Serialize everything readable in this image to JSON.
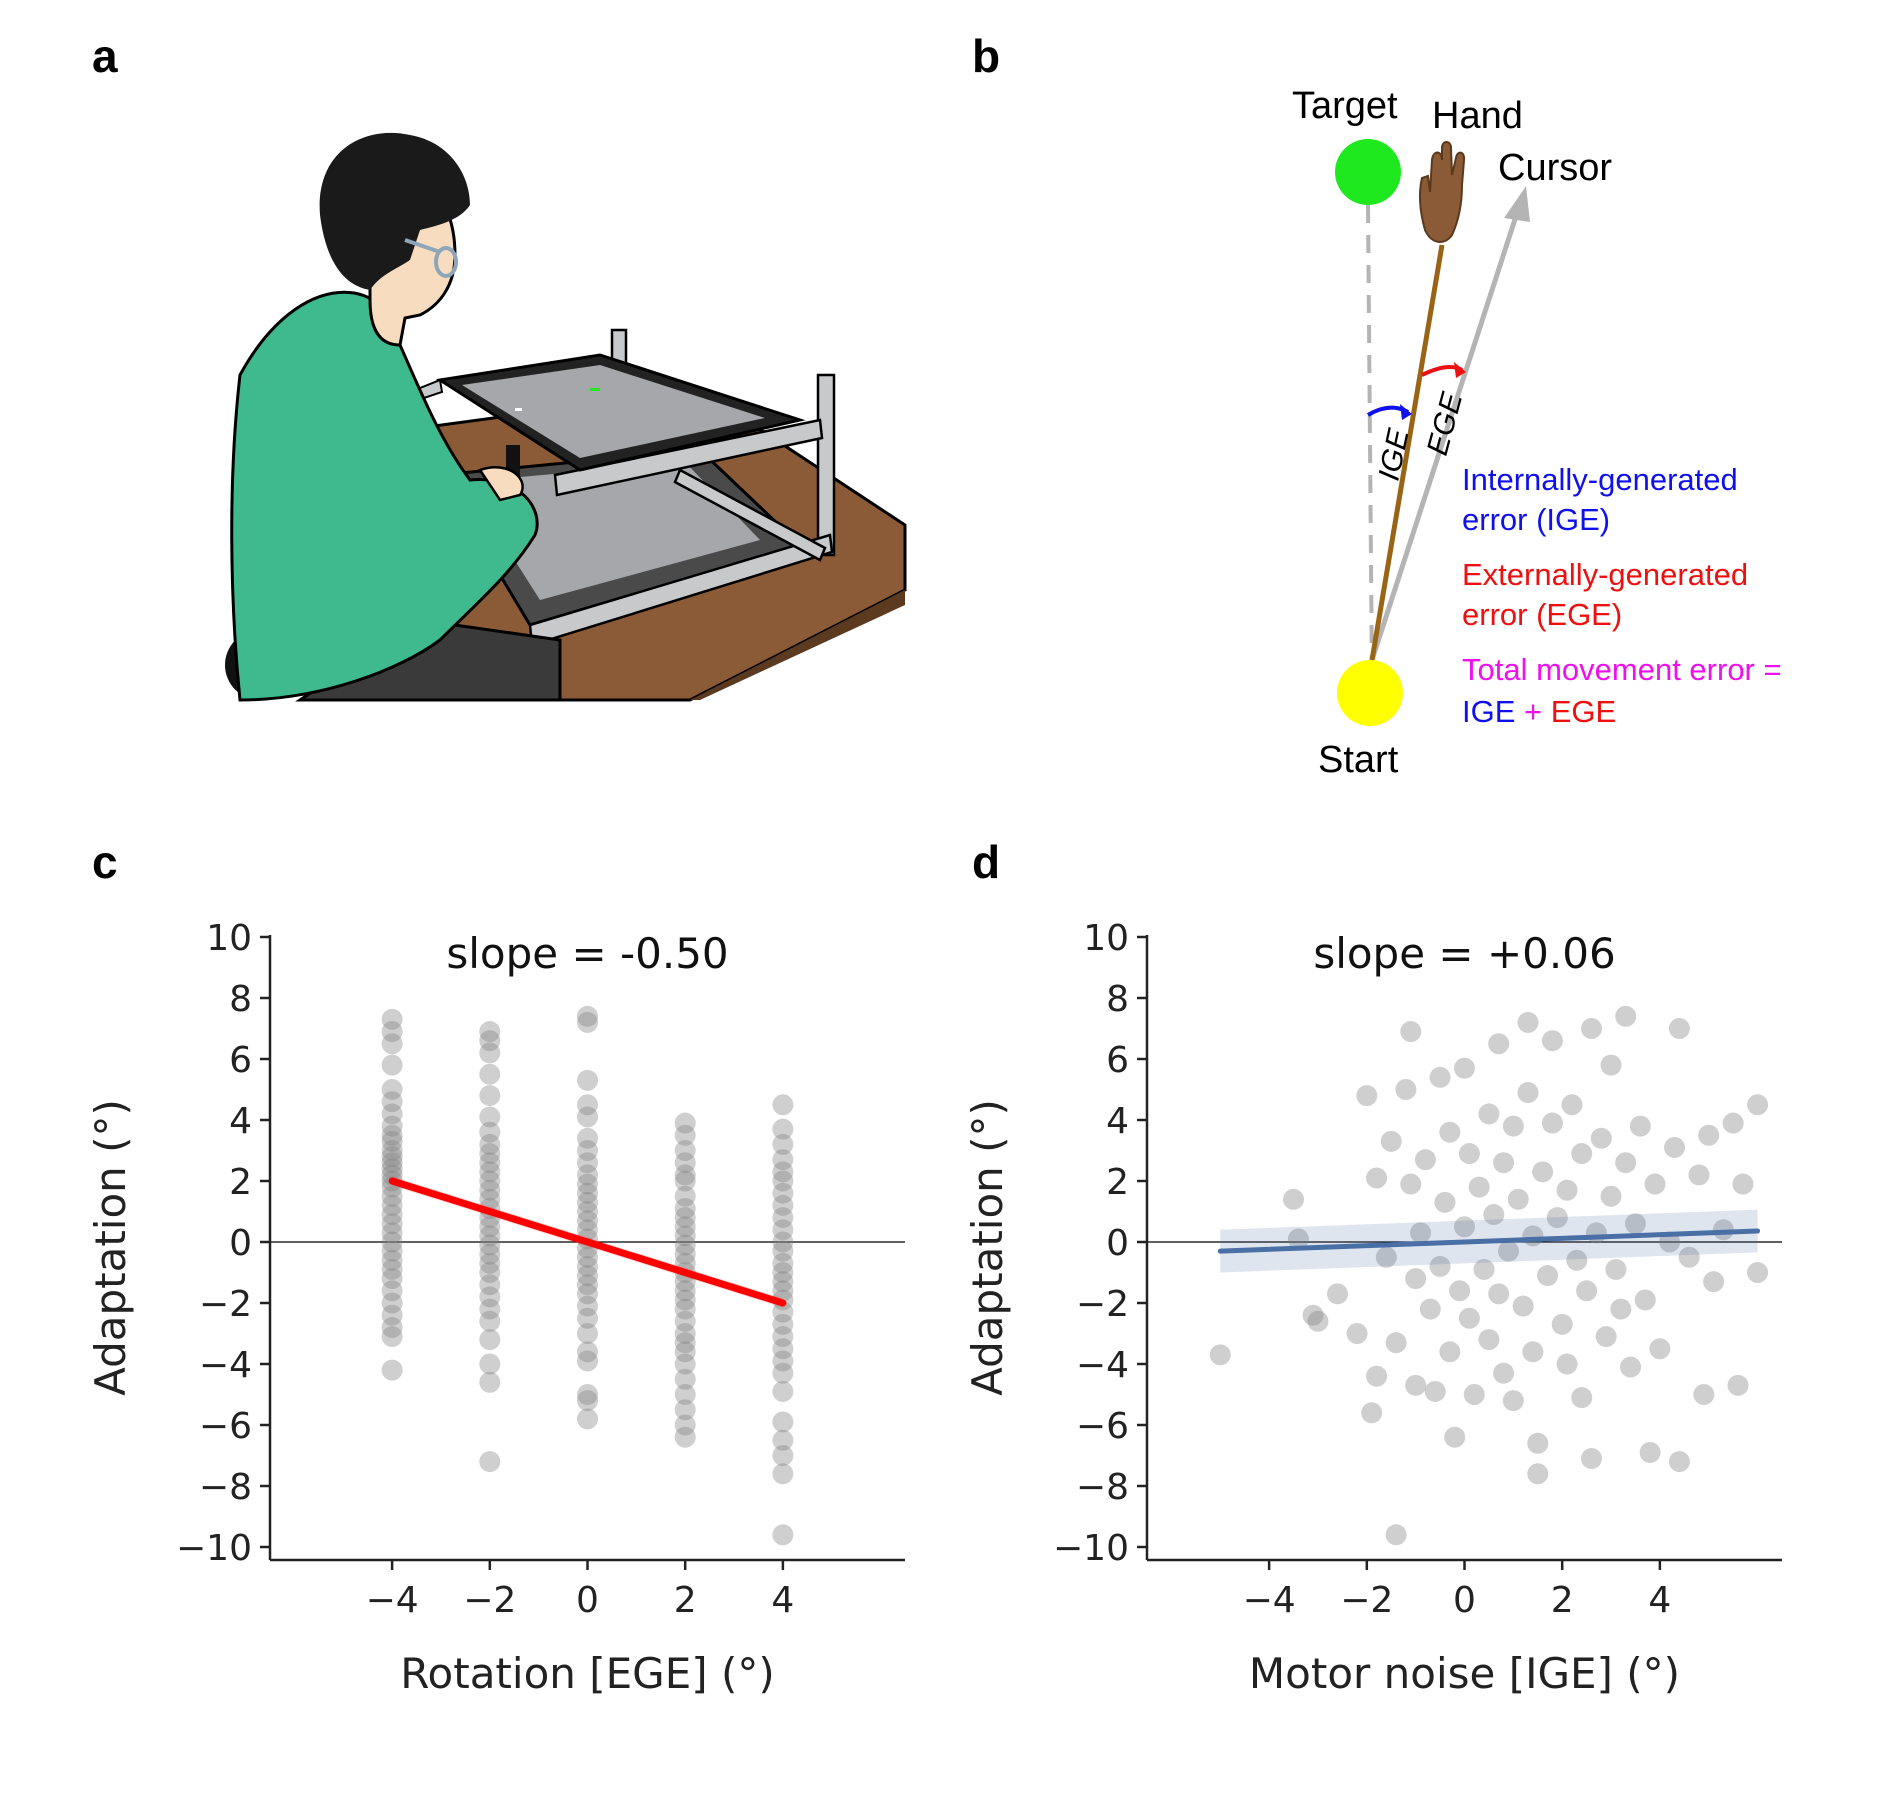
{
  "panels": {
    "a": {
      "letter": "a"
    },
    "b": {
      "letter": "b",
      "target_label": "Target",
      "hand_label": "Hand",
      "cursor_label": "Cursor",
      "start_label": "Start",
      "ige_arc_label": "IGE",
      "ege_arc_label": "EGE",
      "legend": {
        "ige_line1": "Internally-generated",
        "ige_line2": "error (IGE)",
        "ege_line1": "Externally-generated",
        "ege_line2": "error (EGE)",
        "total_line1": "Total movement error =",
        "total_ige": "IGE",
        "total_plus": " + ",
        "total_ege": "EGE"
      },
      "colors": {
        "target": "#1ee81e",
        "start": "#ffff00",
        "hand_path": "#9a6416",
        "cursor_path": "#b4b4b4",
        "ige": "#1010ee",
        "ege": "#ee1010",
        "total": "#ee10ee"
      }
    },
    "c": {
      "letter": "c"
    },
    "d": {
      "letter": "d"
    }
  },
  "chart_data": [
    {
      "type": "scatter",
      "panel": "c",
      "title": "slope = -0.50",
      "xlabel": "Rotation [EGE] (°)",
      "ylabel": "Adaptation (°)",
      "xlim": [
        -6.5,
        6.5
      ],
      "ylim": [
        -10.5,
        10
      ],
      "xticks": [
        "−4",
        "−2",
        "0",
        "2",
        "4"
      ],
      "xtick_values": [
        -4,
        -2,
        0,
        2,
        4
      ],
      "yticks": [
        "10",
        "8",
        "6",
        "4",
        "2",
        "0",
        "−2",
        "−4",
        "−6",
        "−8",
        "−10"
      ],
      "ytick_values": [
        10,
        8,
        6,
        4,
        2,
        0,
        -2,
        -4,
        -6,
        -8,
        -10
      ],
      "zero_line": true,
      "regression": {
        "slope": -0.5,
        "intercept": 0.0,
        "x_range": [
          -4,
          4
        ],
        "color": "#ff0000"
      },
      "point_color": "#808080",
      "points": [
        [
          -4,
          7.3
        ],
        [
          -4,
          6.9
        ],
        [
          -4,
          6.5
        ],
        [
          -4,
          5.8
        ],
        [
          -4,
          5.0
        ],
        [
          -4,
          4.6
        ],
        [
          -4,
          4.2
        ],
        [
          -4,
          3.8
        ],
        [
          -4,
          3.5
        ],
        [
          -4,
          3.3
        ],
        [
          -4,
          3.0
        ],
        [
          -4,
          2.8
        ],
        [
          -4,
          2.6
        ],
        [
          -4,
          2.4
        ],
        [
          -4,
          2.2
        ],
        [
          -4,
          2.0
        ],
        [
          -4,
          1.8
        ],
        [
          -4,
          1.5
        ],
        [
          -4,
          1.2
        ],
        [
          -4,
          0.9
        ],
        [
          -4,
          0.6
        ],
        [
          -4,
          0.3
        ],
        [
          -4,
          0.0
        ],
        [
          -4,
          -0.3
        ],
        [
          -4,
          -0.6
        ],
        [
          -4,
          -0.9
        ],
        [
          -4,
          -1.2
        ],
        [
          -4,
          -1.6
        ],
        [
          -4,
          -2.0
        ],
        [
          -4,
          -2.4
        ],
        [
          -4,
          -2.8
        ],
        [
          -4,
          -3.1
        ],
        [
          -4,
          -4.2
        ],
        [
          -2,
          6.9
        ],
        [
          -2,
          6.6
        ],
        [
          -2,
          6.2
        ],
        [
          -2,
          5.5
        ],
        [
          -2,
          4.8
        ],
        [
          -2,
          4.1
        ],
        [
          -2,
          3.6
        ],
        [
          -2,
          3.2
        ],
        [
          -2,
          2.9
        ],
        [
          -2,
          2.6
        ],
        [
          -2,
          2.3
        ],
        [
          -2,
          2.0
        ],
        [
          -2,
          1.7
        ],
        [
          -2,
          1.4
        ],
        [
          -2,
          1.1
        ],
        [
          -2,
          0.8
        ],
        [
          -2,
          0.5
        ],
        [
          -2,
          0.2
        ],
        [
          -2,
          -0.1
        ],
        [
          -2,
          -0.4
        ],
        [
          -2,
          -0.7
        ],
        [
          -2,
          -1.0
        ],
        [
          -2,
          -1.4
        ],
        [
          -2,
          -1.8
        ],
        [
          -2,
          -2.2
        ],
        [
          -2,
          -2.6
        ],
        [
          -2,
          -3.2
        ],
        [
          -2,
          -4.0
        ],
        [
          -2,
          -4.6
        ],
        [
          -2,
          -7.2
        ],
        [
          0,
          7.4
        ],
        [
          0,
          7.2
        ],
        [
          0,
          5.3
        ],
        [
          0,
          4.5
        ],
        [
          0,
          4.1
        ],
        [
          0,
          3.4
        ],
        [
          0,
          3.0
        ],
        [
          0,
          2.6
        ],
        [
          0,
          2.2
        ],
        [
          0,
          1.9
        ],
        [
          0,
          1.6
        ],
        [
          0,
          1.3
        ],
        [
          0,
          1.0
        ],
        [
          0,
          0.7
        ],
        [
          0,
          0.4
        ],
        [
          0,
          0.1
        ],
        [
          0,
          -0.2
        ],
        [
          0,
          -0.5
        ],
        [
          0,
          -0.8
        ],
        [
          0,
          -1.1
        ],
        [
          0,
          -1.4
        ],
        [
          0,
          -1.7
        ],
        [
          0,
          -2.1
        ],
        [
          0,
          -2.5
        ],
        [
          0,
          -3.0
        ],
        [
          0,
          -3.6
        ],
        [
          0,
          -3.9
        ],
        [
          0,
          -5.0
        ],
        [
          0,
          -5.2
        ],
        [
          0,
          -5.8
        ],
        [
          2,
          3.9
        ],
        [
          2,
          3.5
        ],
        [
          2,
          3.0
        ],
        [
          2,
          2.6
        ],
        [
          2,
          2.2
        ],
        [
          2,
          2.0
        ],
        [
          2,
          1.5
        ],
        [
          2,
          1.1
        ],
        [
          2,
          0.8
        ],
        [
          2,
          0.5
        ],
        [
          2,
          0.2
        ],
        [
          2,
          -0.1
        ],
        [
          2,
          -0.4
        ],
        [
          2,
          -0.7
        ],
        [
          2,
          -1.0
        ],
        [
          2,
          -1.3
        ],
        [
          2,
          -1.6
        ],
        [
          2,
          -1.9
        ],
        [
          2,
          -2.2
        ],
        [
          2,
          -2.6
        ],
        [
          2,
          -3.0
        ],
        [
          2,
          -3.3
        ],
        [
          2,
          -3.6
        ],
        [
          2,
          -4.0
        ],
        [
          2,
          -4.5
        ],
        [
          2,
          -5.0
        ],
        [
          2,
          -5.5
        ],
        [
          2,
          -6.0
        ],
        [
          2,
          -6.4
        ],
        [
          4,
          4.5
        ],
        [
          4,
          3.7
        ],
        [
          4,
          3.2
        ],
        [
          4,
          2.7
        ],
        [
          4,
          2.3
        ],
        [
          4,
          2.0
        ],
        [
          4,
          1.6
        ],
        [
          4,
          1.2
        ],
        [
          4,
          0.8
        ],
        [
          4,
          0.4
        ],
        [
          4,
          0.0
        ],
        [
          4,
          -0.3
        ],
        [
          4,
          -0.7
        ],
        [
          4,
          -1.0
        ],
        [
          4,
          -1.3
        ],
        [
          4,
          -1.6
        ],
        [
          4,
          -1.9
        ],
        [
          4,
          -2.3
        ],
        [
          4,
          -2.7
        ],
        [
          4,
          -3.1
        ],
        [
          4,
          -3.5
        ],
        [
          4,
          -3.9
        ],
        [
          4,
          -4.3
        ],
        [
          4,
          -4.9
        ],
        [
          4,
          -5.9
        ],
        [
          4,
          -6.5
        ],
        [
          4,
          -7.0
        ],
        [
          4,
          -7.6
        ],
        [
          4,
          -9.6
        ]
      ]
    },
    {
      "type": "scatter",
      "panel": "d",
      "title": "slope = +0.06",
      "xlabel": "Motor noise [IGE] (°)",
      "ylabel": "Adaptation (°)",
      "xlim": [
        -6.5,
        6.5
      ],
      "ylim": [
        -10.5,
        10
      ],
      "xticks": [
        "−4",
        "−2",
        "0",
        "2",
        "4"
      ],
      "xtick_values": [
        -4,
        -2,
        0,
        2,
        4
      ],
      "yticks": [
        "10",
        "8",
        "6",
        "4",
        "2",
        "0",
        "−2",
        "−4",
        "−6",
        "−8",
        "−10"
      ],
      "ytick_values": [
        10,
        8,
        6,
        4,
        2,
        0,
        -2,
        -4,
        -6,
        -8,
        -10
      ],
      "zero_line": true,
      "regression": {
        "slope": 0.06,
        "intercept": 0.0,
        "x_range": [
          -5.0,
          6.0
        ],
        "color": "#4a6fa5"
      },
      "point_color": "#808080",
      "points": [
        [
          -5.0,
          -3.7
        ],
        [
          -3.5,
          1.4
        ],
        [
          -3.4,
          0.1
        ],
        [
          -3.1,
          -2.4
        ],
        [
          -3.0,
          -2.6
        ],
        [
          -2.6,
          -1.7
        ],
        [
          -2.2,
          -3.0
        ],
        [
          -2.0,
          4.8
        ],
        [
          -1.9,
          -5.6
        ],
        [
          -1.8,
          2.1
        ],
        [
          -1.8,
          -4.4
        ],
        [
          -1.6,
          -0.5
        ],
        [
          -1.5,
          3.3
        ],
        [
          -1.4,
          -3.3
        ],
        [
          -1.4,
          -9.6
        ],
        [
          -1.2,
          5.0
        ],
        [
          -1.1,
          6.9
        ],
        [
          -1.1,
          1.9
        ],
        [
          -1.0,
          -1.2
        ],
        [
          -1.0,
          -4.7
        ],
        [
          -0.9,
          0.3
        ],
        [
          -0.8,
          2.7
        ],
        [
          -0.7,
          -2.2
        ],
        [
          -0.6,
          -4.9
        ],
        [
          -0.5,
          5.4
        ],
        [
          -0.5,
          -0.8
        ],
        [
          -0.4,
          1.3
        ],
        [
          -0.3,
          3.6
        ],
        [
          -0.3,
          -3.6
        ],
        [
          -0.2,
          -6.4
        ],
        [
          -0.1,
          -1.6
        ],
        [
          0.0,
          5.7
        ],
        [
          0.0,
          0.5
        ],
        [
          0.1,
          2.9
        ],
        [
          0.1,
          -2.5
        ],
        [
          0.2,
          -5.0
        ],
        [
          0.3,
          1.8
        ],
        [
          0.4,
          -0.9
        ],
        [
          0.5,
          4.2
        ],
        [
          0.5,
          -3.2
        ],
        [
          0.6,
          0.9
        ],
        [
          0.7,
          6.5
        ],
        [
          0.7,
          -1.7
        ],
        [
          0.8,
          2.6
        ],
        [
          0.8,
          -4.3
        ],
        [
          0.9,
          -0.3
        ],
        [
          1.0,
          3.8
        ],
        [
          1.0,
          -5.2
        ],
        [
          1.1,
          1.4
        ],
        [
          1.2,
          -2.1
        ],
        [
          1.3,
          7.2
        ],
        [
          1.3,
          4.9
        ],
        [
          1.4,
          0.2
        ],
        [
          1.4,
          -3.6
        ],
        [
          1.5,
          -7.6
        ],
        [
          1.5,
          -6.6
        ],
        [
          1.6,
          2.3
        ],
        [
          1.7,
          -1.1
        ],
        [
          1.8,
          6.6
        ],
        [
          1.8,
          3.9
        ],
        [
          1.9,
          0.8
        ],
        [
          2.0,
          -2.7
        ],
        [
          2.1,
          -4.0
        ],
        [
          2.1,
          1.7
        ],
        [
          2.2,
          4.5
        ],
        [
          2.3,
          -0.6
        ],
        [
          2.4,
          2.9
        ],
        [
          2.4,
          -5.1
        ],
        [
          2.5,
          -1.6
        ],
        [
          2.6,
          7.0
        ],
        [
          2.6,
          -7.1
        ],
        [
          2.7,
          0.3
        ],
        [
          2.8,
          3.4
        ],
        [
          2.9,
          -3.1
        ],
        [
          3.0,
          5.8
        ],
        [
          3.0,
          1.5
        ],
        [
          3.1,
          -0.9
        ],
        [
          3.2,
          -2.2
        ],
        [
          3.3,
          7.4
        ],
        [
          3.3,
          2.6
        ],
        [
          3.4,
          -4.1
        ],
        [
          3.5,
          0.6
        ],
        [
          3.6,
          3.8
        ],
        [
          3.7,
          -1.9
        ],
        [
          3.8,
          -6.9
        ],
        [
          3.9,
          1.9
        ],
        [
          4.0,
          -3.5
        ],
        [
          4.2,
          0.0
        ],
        [
          4.3,
          3.1
        ],
        [
          4.4,
          7.0
        ],
        [
          4.4,
          -7.2
        ],
        [
          4.6,
          -0.5
        ],
        [
          4.8,
          2.2
        ],
        [
          4.9,
          -5.0
        ],
        [
          5.0,
          3.5
        ],
        [
          5.1,
          -1.3
        ],
        [
          5.3,
          0.4
        ],
        [
          5.5,
          3.9
        ],
        [
          5.6,
          -4.7
        ],
        [
          5.7,
          1.9
        ],
        [
          6.0,
          4.5
        ],
        [
          6.0,
          -1.0
        ]
      ]
    }
  ]
}
